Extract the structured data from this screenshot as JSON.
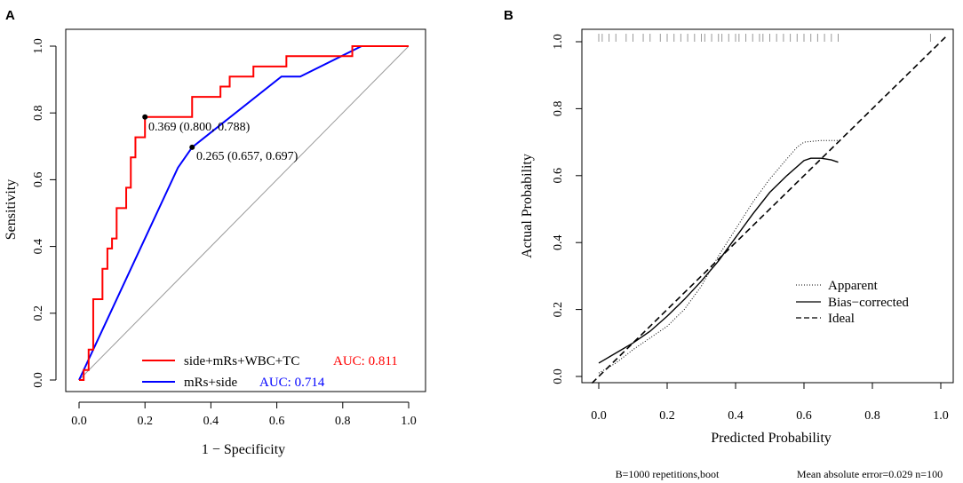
{
  "chart_data": [
    {
      "panel_label": "A",
      "type": "line",
      "title": "",
      "xlabel": "1 − Specificity",
      "ylabel": "Sensitivity",
      "xlim": [
        0,
        1
      ],
      "ylim": [
        0,
        1
      ],
      "xticks": [
        "0.0",
        "0.2",
        "0.4",
        "0.6",
        "0.8",
        "1.0"
      ],
      "yticks": [
        "0.0",
        "0.2",
        "0.4",
        "0.6",
        "0.8",
        "1.0"
      ],
      "legend_position": "bottom-right",
      "series": [
        {
          "name": "side+mRs+WBC+TC",
          "color": "#ff0000",
          "auc_label": "AUC: 0.811",
          "points": [
            [
              0,
              0
            ],
            [
              0.014,
              0
            ],
            [
              0.014,
              0.03
            ],
            [
              0.029,
              0.03
            ],
            [
              0.029,
              0.091
            ],
            [
              0.043,
              0.091
            ],
            [
              0.043,
              0.242
            ],
            [
              0.071,
              0.242
            ],
            [
              0.071,
              0.333
            ],
            [
              0.086,
              0.333
            ],
            [
              0.086,
              0.394
            ],
            [
              0.1,
              0.394
            ],
            [
              0.1,
              0.424
            ],
            [
              0.114,
              0.424
            ],
            [
              0.114,
              0.515
            ],
            [
              0.143,
              0.515
            ],
            [
              0.143,
              0.576
            ],
            [
              0.157,
              0.576
            ],
            [
              0.157,
              0.667
            ],
            [
              0.171,
              0.667
            ],
            [
              0.171,
              0.727
            ],
            [
              0.2,
              0.727
            ],
            [
              0.2,
              0.788
            ],
            [
              0.343,
              0.788
            ],
            [
              0.343,
              0.848
            ],
            [
              0.429,
              0.848
            ],
            [
              0.429,
              0.879
            ],
            [
              0.457,
              0.879
            ],
            [
              0.457,
              0.909
            ],
            [
              0.529,
              0.909
            ],
            [
              0.529,
              0.939
            ],
            [
              0.629,
              0.939
            ],
            [
              0.629,
              0.97
            ],
            [
              0.829,
              0.97
            ],
            [
              0.829,
              1
            ],
            [
              1,
              1
            ]
          ]
        },
        {
          "name": "mRs+side",
          "color": "#0000ff",
          "auc_label": "AUC: 0.714",
          "points": [
            [
              0,
              0
            ],
            [
              0.3,
              0.636
            ],
            [
              0.343,
              0.697
            ],
            [
              0.614,
              0.909
            ],
            [
              0.671,
              0.909
            ],
            [
              0.857,
              1
            ],
            [
              1,
              1
            ]
          ]
        }
      ],
      "reference_line": {
        "name": "diagonal",
        "points": [
          [
            0,
            0
          ],
          [
            1,
            1
          ]
        ],
        "color": "#9a9a9a"
      },
      "annotations": [
        {
          "text": "0.369 (0.800, 0.788)",
          "point": [
            0.2,
            0.788
          ]
        },
        {
          "text": "0.265 (0.657, 0.697)",
          "point": [
            0.343,
            0.697
          ]
        }
      ]
    },
    {
      "panel_label": "B",
      "type": "line",
      "title": "",
      "xlabel": "Predicted Probability",
      "ylabel": "Actual Probability",
      "xlim": [
        -0.02,
        1.02
      ],
      "ylim": [
        -0.02,
        1.02
      ],
      "xticks": [
        "0.0",
        "0.2",
        "0.4",
        "0.6",
        "0.8",
        "1.0"
      ],
      "yticks": [
        "0.0",
        "0.2",
        "0.4",
        "0.6",
        "0.8",
        "1.0"
      ],
      "legend_position": "bottom-right",
      "series": [
        {
          "name": "Apparent",
          "style": "dotted",
          "points": [
            [
              0,
              0.01
            ],
            [
              0.05,
              0.04
            ],
            [
              0.1,
              0.08
            ],
            [
              0.15,
              0.115
            ],
            [
              0.2,
              0.15
            ],
            [
              0.25,
              0.2
            ],
            [
              0.3,
              0.27
            ],
            [
              0.35,
              0.36
            ],
            [
              0.4,
              0.44
            ],
            [
              0.45,
              0.52
            ],
            [
              0.5,
              0.59
            ],
            [
              0.55,
              0.65
            ],
            [
              0.58,
              0.685
            ],
            [
              0.6,
              0.7
            ],
            [
              0.65,
              0.705
            ],
            [
              0.7,
              0.705
            ]
          ]
        },
        {
          "name": "Bias−corrected",
          "style": "solid",
          "points": [
            [
              0,
              0.04
            ],
            [
              0.05,
              0.07
            ],
            [
              0.1,
              0.1
            ],
            [
              0.15,
              0.135
            ],
            [
              0.2,
              0.18
            ],
            [
              0.25,
              0.23
            ],
            [
              0.3,
              0.285
            ],
            [
              0.35,
              0.345
            ],
            [
              0.4,
              0.415
            ],
            [
              0.45,
              0.485
            ],
            [
              0.5,
              0.55
            ],
            [
              0.55,
              0.6
            ],
            [
              0.6,
              0.645
            ],
            [
              0.62,
              0.652
            ],
            [
              0.65,
              0.652
            ],
            [
              0.68,
              0.647
            ],
            [
              0.7,
              0.64
            ]
          ]
        },
        {
          "name": "Ideal",
          "style": "dashed",
          "points": [
            [
              -0.02,
              -0.02
            ],
            [
              1.02,
              1.02
            ]
          ]
        }
      ],
      "rug_x": [
        0.0,
        0.01,
        0.03,
        0.05,
        0.08,
        0.1,
        0.13,
        0.15,
        0.18,
        0.2,
        0.22,
        0.24,
        0.26,
        0.28,
        0.3,
        0.31,
        0.33,
        0.35,
        0.36,
        0.38,
        0.4,
        0.41,
        0.43,
        0.45,
        0.47,
        0.48,
        0.5,
        0.52,
        0.54,
        0.56,
        0.58,
        0.6,
        0.62,
        0.64,
        0.66,
        0.68,
        0.7,
        0.97
      ],
      "footer_left": "B=1000 repetitions,boot",
      "footer_right": "Mean absolute error=0.029 n=100"
    }
  ]
}
